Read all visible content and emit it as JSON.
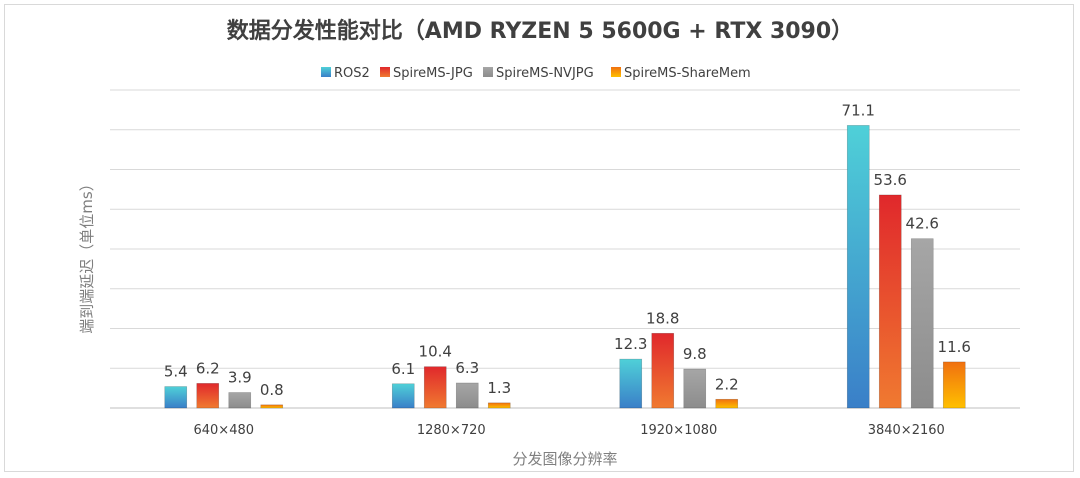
{
  "chart_data": {
    "type": "bar",
    "title": "数据分发性能对比（AMD RYZEN 5 5600G + RTX 3090）",
    "xlabel": "分发图像分辨率",
    "ylabel": "端到端延迟（单位ms）",
    "categories": [
      "640×480",
      "1280×720",
      "1920×1080",
      "3840×2160"
    ],
    "series": [
      {
        "name": "ROS2",
        "values": [
          5.4,
          6.1,
          12.3,
          71.1
        ],
        "color_top": "#4fd0d8",
        "color_bottom": "#3a7fc8"
      },
      {
        "name": "SpireMS-JPG",
        "values": [
          6.2,
          10.4,
          18.8,
          53.6
        ],
        "color_top": "#e0282c",
        "color_bottom": "#f07a30"
      },
      {
        "name": "SpireMS-NVJPG",
        "values": [
          3.9,
          6.3,
          9.8,
          42.6
        ],
        "color_top": "#a6a6a6",
        "color_bottom": "#8c8c8c"
      },
      {
        "name": "SpireMS-ShareMem",
        "values": [
          0.8,
          1.3,
          2.2,
          11.6
        ],
        "color_top": "#f07010",
        "color_bottom": "#ffc000"
      }
    ],
    "ylim": [
      0,
      80
    ],
    "gridlines": true,
    "grid_step": 10,
    "legend_position": "top"
  }
}
